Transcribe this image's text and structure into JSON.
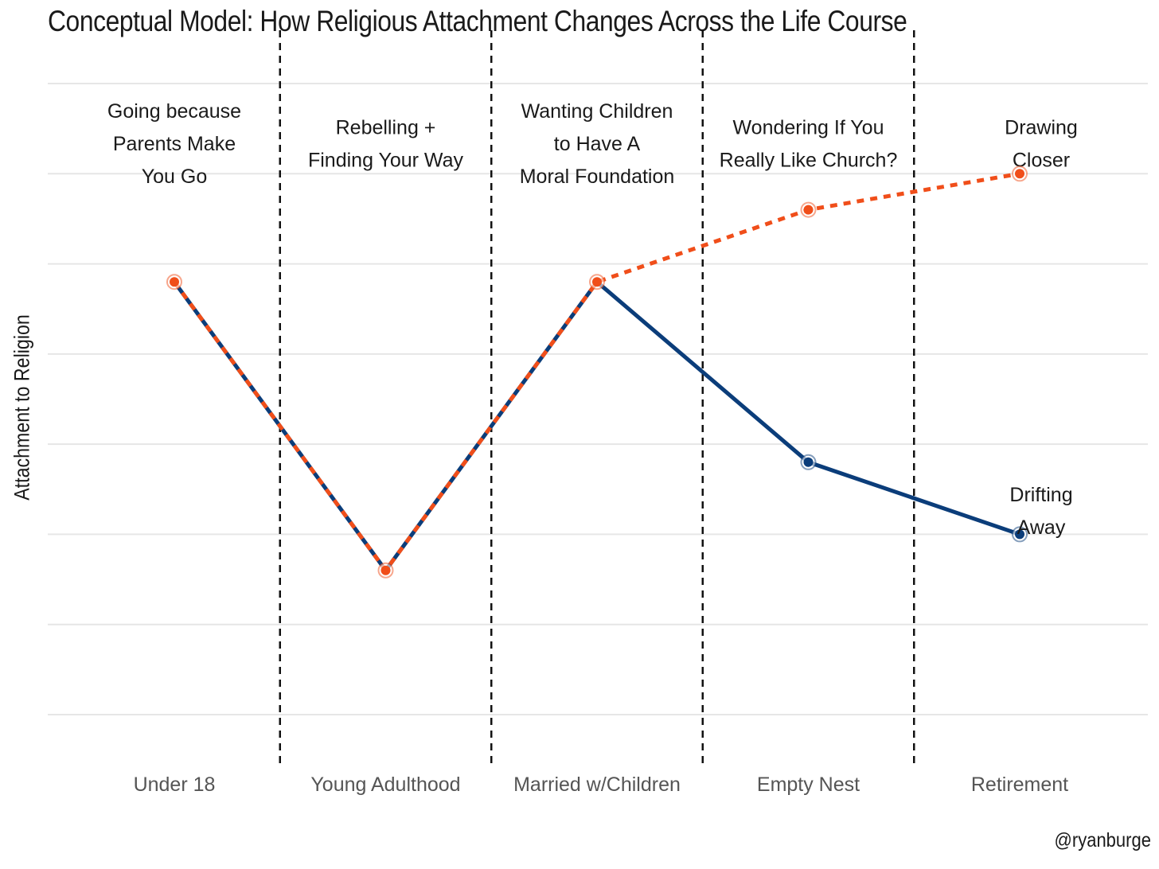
{
  "title": "Conceptual Model: How Religious Attachment Changes Across the Life Course",
  "credit": "@ryanburge",
  "chart_data": {
    "type": "line",
    "title": "Conceptual Model: How Religious Attachment Changes Across the Life Course",
    "xlabel": "",
    "ylabel": "Attachment to Religion",
    "categories": [
      "Under 18",
      "Young Adulthood",
      "Married w/Children",
      "Empty Nest",
      "Retirement"
    ],
    "phase_labels": [
      [
        "Going because",
        "Parents Make",
        "You Go"
      ],
      [
        "Rebelling +",
        "Finding Your Way"
      ],
      [
        "Wanting Children",
        "to Have A",
        "Moral Foundation"
      ],
      [
        "Wondering If You",
        "Really Like Church?"
      ],
      [
        "Drawing",
        "Closer"
      ]
    ],
    "series": [
      {
        "name": "Drifting Away",
        "values": [
          6.8,
          3.6,
          6.8,
          4.8,
          4.0
        ],
        "color": "#0b3d7a",
        "style": "solid"
      },
      {
        "name": "Drawing Closer",
        "values": [
          6.8,
          3.6,
          6.8,
          7.6,
          8.0
        ],
        "color": "#f04e1a",
        "style": "dashed"
      }
    ],
    "end_labels": {
      "drifting": [
        "Drifting",
        "Away"
      ]
    },
    "ylim": [
      1.4,
      8.8
    ],
    "y_gridlines": [
      2,
      3,
      4,
      5,
      6,
      7,
      8,
      9
    ],
    "grid": true,
    "y_tick_labels_shown": false,
    "phase_dividers": true
  }
}
